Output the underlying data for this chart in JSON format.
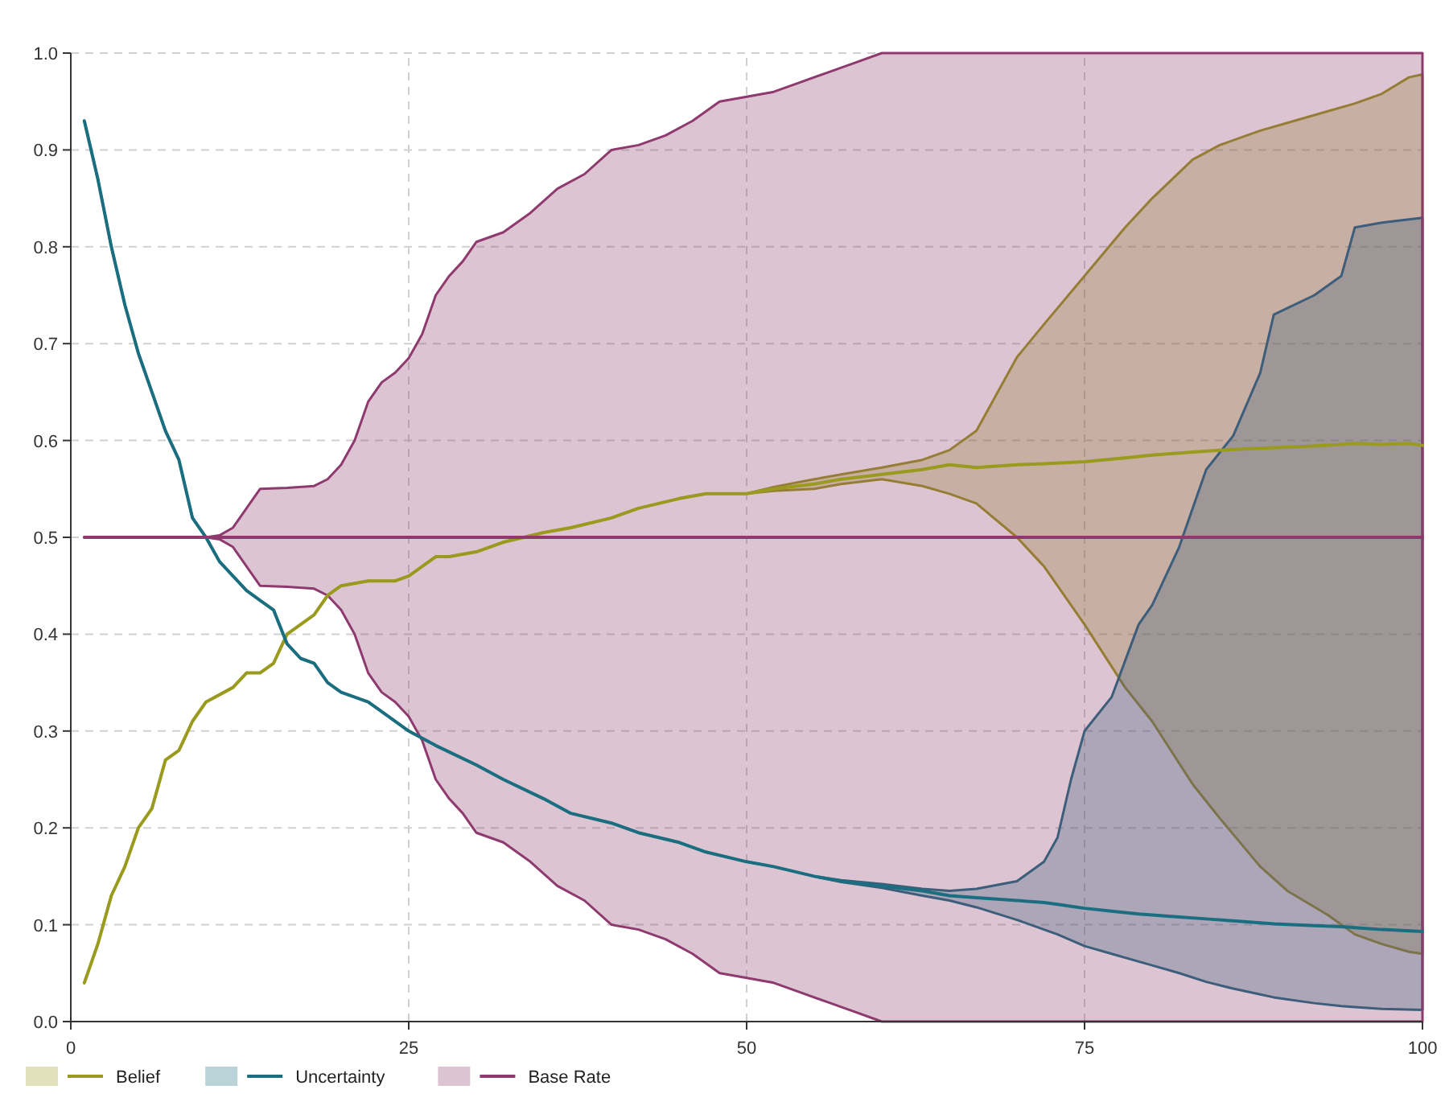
{
  "chart_data": {
    "type": "line",
    "xlim": [
      0,
      100
    ],
    "xticks": [
      0,
      25,
      50,
      75,
      100
    ],
    "ylim": [
      0,
      1
    ],
    "yticks": [
      {
        "value": 0,
        "label": "0.0"
      },
      0.1,
      0.2,
      0.3,
      0.4,
      0.5,
      0.6,
      0.7,
      0.8,
      0.9,
      {
        "value": 1,
        "label": "1.0"
      }
    ],
    "grid": true,
    "legend": "bottom",
    "marker": "none",
    "line_style": "solid",
    "series": [
      {
        "name": "Belief",
        "color": "#9a9a1e",
        "x": [
          1,
          2,
          3,
          4,
          5,
          6,
          7,
          8,
          9,
          10,
          12,
          13,
          14,
          15,
          16,
          17,
          18,
          19,
          20,
          22,
          24,
          25,
          26,
          27,
          28,
          30,
          32,
          35,
          37,
          40,
          42,
          45,
          47,
          50,
          52,
          55,
          57,
          60,
          63,
          65,
          67,
          70,
          72,
          75,
          78,
          80,
          83,
          85,
          88,
          90,
          93,
          95,
          97,
          99,
          100
        ],
        "values": [
          0.04,
          0.08,
          0.13,
          0.16,
          0.2,
          0.22,
          0.27,
          0.28,
          0.31,
          0.33,
          0.345,
          0.36,
          0.36,
          0.37,
          0.4,
          0.41,
          0.42,
          0.44,
          0.45,
          0.455,
          0.455,
          0.46,
          0.47,
          0.48,
          0.48,
          0.485,
          0.495,
          0.505,
          0.51,
          0.52,
          0.53,
          0.54,
          0.545,
          0.545,
          0.55,
          0.555,
          0.56,
          0.565,
          0.57,
          0.575,
          0.572,
          0.575,
          0.576,
          0.578,
          0.582,
          0.585,
          0.588,
          0.59,
          0.592,
          0.593,
          0.595,
          0.597,
          0.596,
          0.597,
          0.595
        ],
        "upper": [
          0.04,
          0.08,
          0.13,
          0.16,
          0.2,
          0.22,
          0.27,
          0.28,
          0.31,
          0.33,
          0.345,
          0.36,
          0.36,
          0.37,
          0.4,
          0.41,
          0.42,
          0.44,
          0.45,
          0.455,
          0.455,
          0.46,
          0.47,
          0.48,
          0.48,
          0.485,
          0.495,
          0.505,
          0.51,
          0.52,
          0.53,
          0.54,
          0.545,
          0.545,
          0.552,
          0.56,
          0.565,
          0.572,
          0.58,
          0.59,
          0.61,
          0.686,
          0.72,
          0.77,
          0.82,
          0.85,
          0.89,
          0.905,
          0.92,
          0.928,
          0.94,
          0.948,
          0.958,
          0.975,
          0.978
        ],
        "lower": [
          0.04,
          0.08,
          0.13,
          0.16,
          0.2,
          0.22,
          0.27,
          0.28,
          0.31,
          0.33,
          0.345,
          0.36,
          0.36,
          0.37,
          0.4,
          0.41,
          0.42,
          0.44,
          0.45,
          0.455,
          0.455,
          0.46,
          0.47,
          0.48,
          0.48,
          0.485,
          0.495,
          0.505,
          0.51,
          0.52,
          0.53,
          0.54,
          0.545,
          0.545,
          0.548,
          0.55,
          0.555,
          0.56,
          0.553,
          0.545,
          0.535,
          0.5,
          0.47,
          0.41,
          0.345,
          0.31,
          0.245,
          0.21,
          0.16,
          0.135,
          0.11,
          0.09,
          0.08,
          0.072,
          0.07
        ]
      },
      {
        "name": "Uncertainty",
        "color": "#1a6e80",
        "x": [
          1,
          2,
          3,
          4,
          5,
          6,
          7,
          8,
          9,
          10,
          11,
          12,
          13,
          14,
          15,
          16,
          17,
          18,
          19,
          20,
          22,
          23,
          25,
          27,
          30,
          32,
          35,
          37,
          40,
          42,
          45,
          47,
          50,
          52,
          55,
          57,
          60,
          63,
          65,
          67,
          70,
          72,
          73,
          74,
          75,
          77,
          79,
          80,
          82,
          84,
          86,
          88,
          89,
          92,
          94,
          95,
          97,
          100
        ],
        "values": [
          0.93,
          0.87,
          0.8,
          0.74,
          0.69,
          0.65,
          0.61,
          0.58,
          0.52,
          0.5,
          0.475,
          0.46,
          0.445,
          0.435,
          0.425,
          0.39,
          0.375,
          0.37,
          0.35,
          0.34,
          0.33,
          0.32,
          0.3,
          0.285,
          0.265,
          0.25,
          0.23,
          0.215,
          0.205,
          0.195,
          0.185,
          0.175,
          0.165,
          0.16,
          0.15,
          0.145,
          0.14,
          0.135,
          0.13,
          0.128,
          0.125,
          0.123,
          0.121,
          0.119,
          0.117,
          0.114,
          0.111,
          0.11,
          0.108,
          0.106,
          0.104,
          0.102,
          0.101,
          0.099,
          0.098,
          0.097,
          0.095,
          0.093
        ],
        "upper": [
          0.93,
          0.87,
          0.8,
          0.74,
          0.69,
          0.65,
          0.61,
          0.58,
          0.52,
          0.5,
          0.475,
          0.46,
          0.445,
          0.435,
          0.425,
          0.39,
          0.375,
          0.37,
          0.35,
          0.34,
          0.33,
          0.32,
          0.3,
          0.285,
          0.265,
          0.25,
          0.23,
          0.215,
          0.205,
          0.195,
          0.185,
          0.175,
          0.165,
          0.16,
          0.15,
          0.146,
          0.142,
          0.137,
          0.135,
          0.137,
          0.145,
          0.165,
          0.19,
          0.25,
          0.3,
          0.335,
          0.41,
          0.43,
          0.49,
          0.57,
          0.605,
          0.67,
          0.73,
          0.75,
          0.77,
          0.82,
          0.825,
          0.83
        ],
        "lower": [
          0.93,
          0.87,
          0.8,
          0.74,
          0.69,
          0.65,
          0.61,
          0.58,
          0.52,
          0.5,
          0.475,
          0.46,
          0.445,
          0.435,
          0.425,
          0.39,
          0.375,
          0.37,
          0.35,
          0.34,
          0.33,
          0.32,
          0.3,
          0.285,
          0.265,
          0.25,
          0.23,
          0.215,
          0.205,
          0.195,
          0.185,
          0.175,
          0.165,
          0.16,
          0.15,
          0.144,
          0.138,
          0.13,
          0.125,
          0.118,
          0.105,
          0.095,
          0.09,
          0.084,
          0.078,
          0.07,
          0.062,
          0.058,
          0.05,
          0.041,
          0.034,
          0.028,
          0.025,
          0.019,
          0.016,
          0.015,
          0.013,
          0.012
        ]
      },
      {
        "name": "Base Rate",
        "color": "#8e3a6e",
        "x": [
          1,
          10,
          11,
          12,
          13,
          14,
          16,
          18,
          19,
          20,
          21,
          22,
          23,
          24,
          25,
          26,
          27,
          28,
          29,
          30,
          32,
          34,
          36,
          38,
          40,
          42,
          44,
          46,
          48,
          50,
          52,
          54,
          56,
          58,
          60,
          100
        ],
        "values": [
          0.5,
          0.5,
          0.5,
          0.5,
          0.5,
          0.5,
          0.5,
          0.5,
          0.5,
          0.5,
          0.5,
          0.5,
          0.5,
          0.5,
          0.5,
          0.5,
          0.5,
          0.5,
          0.5,
          0.5,
          0.5,
          0.5,
          0.5,
          0.5,
          0.5,
          0.5,
          0.5,
          0.5,
          0.5,
          0.5,
          0.5,
          0.5,
          0.5,
          0.5,
          0.5,
          0.5
        ],
        "upper": [
          0.5,
          0.5,
          0.502,
          0.51,
          0.53,
          0.55,
          0.551,
          0.553,
          0.56,
          0.575,
          0.6,
          0.64,
          0.66,
          0.67,
          0.685,
          0.71,
          0.75,
          0.77,
          0.785,
          0.805,
          0.815,
          0.835,
          0.86,
          0.875,
          0.9,
          0.905,
          0.915,
          0.93,
          0.95,
          0.955,
          0.96,
          0.97,
          0.98,
          0.99,
          1,
          1
        ],
        "lower": [
          0.5,
          0.5,
          0.498,
          0.49,
          0.47,
          0.45,
          0.449,
          0.447,
          0.44,
          0.425,
          0.4,
          0.36,
          0.34,
          0.33,
          0.315,
          0.29,
          0.25,
          0.23,
          0.215,
          0.195,
          0.185,
          0.165,
          0.14,
          0.125,
          0.1,
          0.095,
          0.085,
          0.07,
          0.05,
          0.045,
          0.04,
          0.03,
          0.02,
          0.01,
          0,
          0
        ]
      }
    ]
  }
}
